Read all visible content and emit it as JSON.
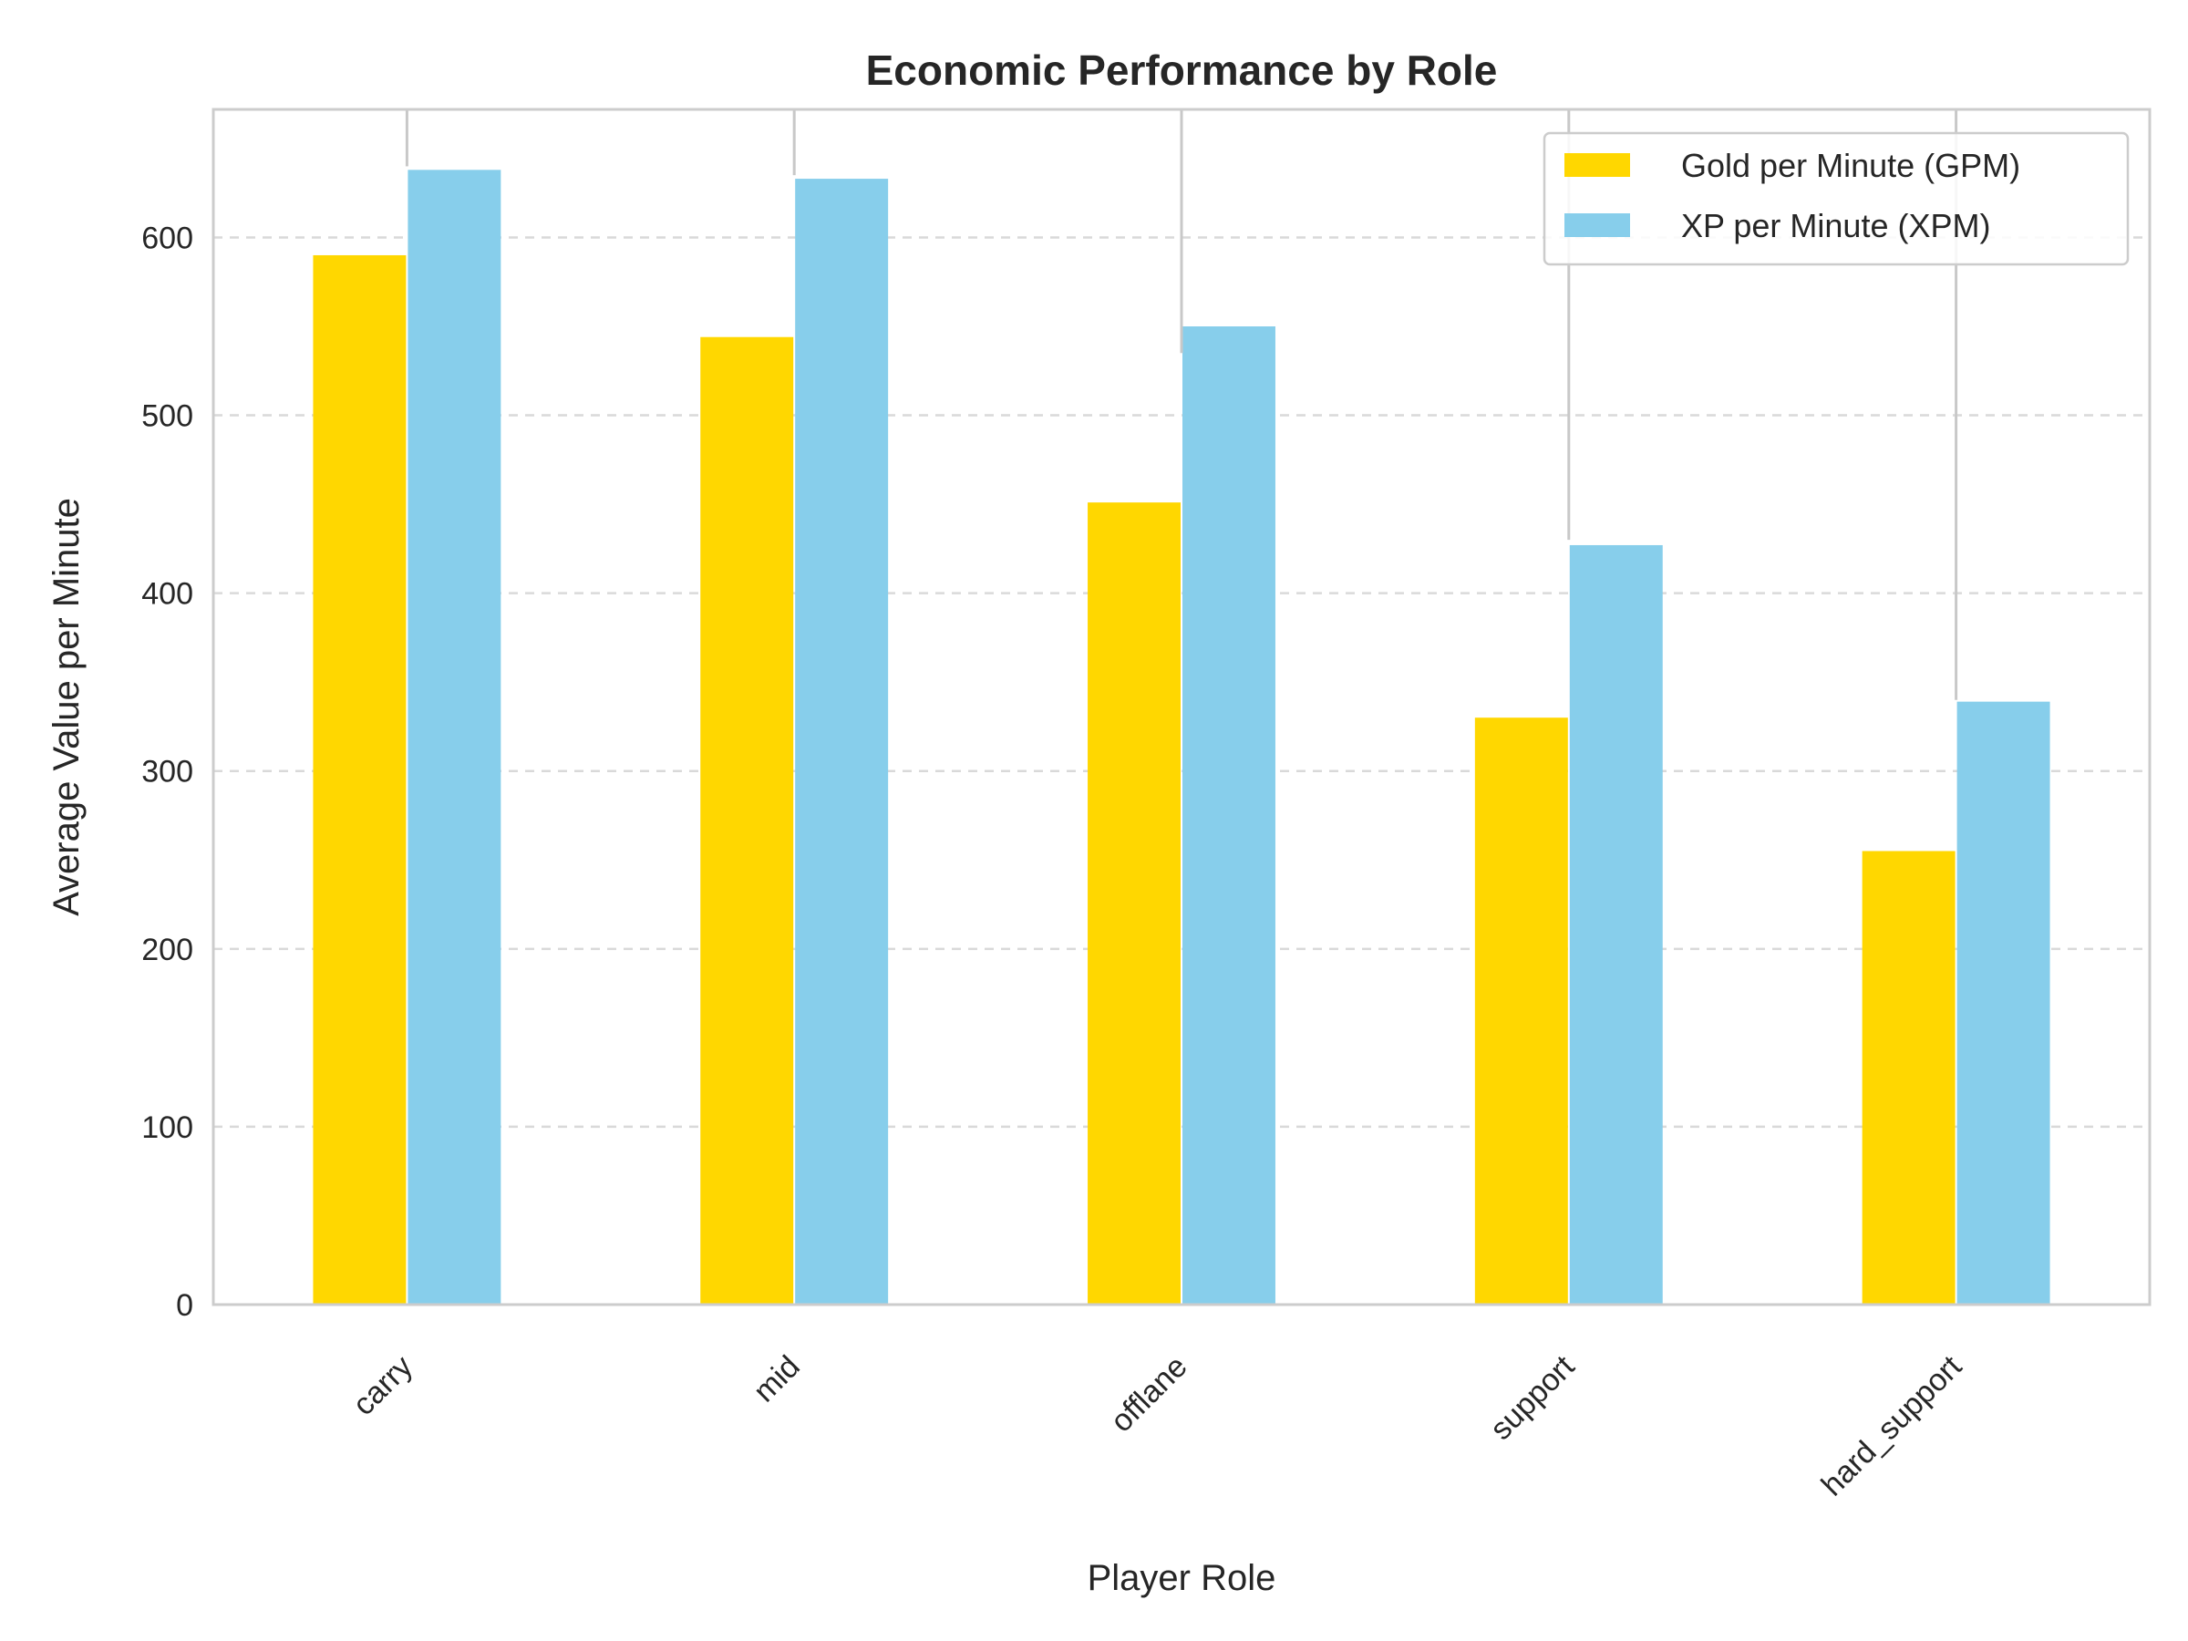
{
  "chart_data": {
    "type": "bar",
    "title": "Economic Performance by Role",
    "xlabel": "Player Role",
    "ylabel": "Average Value per Minute",
    "categories": [
      "carry",
      "mid",
      "offlane",
      "support",
      "hard_support"
    ],
    "series": [
      {
        "name": "Gold per Minute (GPM)",
        "color": "#FFD700",
        "values": [
          590,
          544,
          451,
          330,
          255
        ]
      },
      {
        "name": "XP per Minute (XPM)",
        "color": "#87CEEB",
        "values": [
          638,
          633,
          550,
          427,
          339
        ]
      }
    ],
    "error_bar_tops": [
      640,
      635,
      535,
      430,
      340
    ],
    "ylim": [
      0,
      672
    ],
    "yticks": [
      0,
      100,
      200,
      300,
      400,
      500,
      600
    ],
    "grid": "y-dashed",
    "legend_position": "top-right"
  }
}
